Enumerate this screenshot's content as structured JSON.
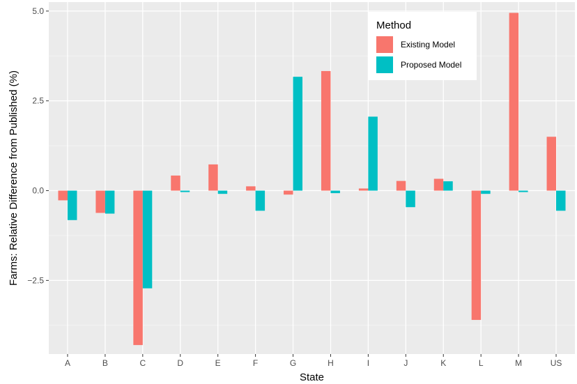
{
  "chart_data": {
    "type": "bar",
    "xlabel": "State",
    "ylabel": "Farms: Relative Difference from Published (%)",
    "categories": [
      "A",
      "B",
      "C",
      "D",
      "E",
      "F",
      "G",
      "H",
      "I",
      "J",
      "K",
      "L",
      "M",
      "US"
    ],
    "series": [
      {
        "name": "Existing Model",
        "color": "#F8766D",
        "values": [
          -0.27,
          -0.62,
          -4.3,
          0.42,
          0.73,
          0.12,
          -0.11,
          3.33,
          0.06,
          0.27,
          0.33,
          -3.6,
          4.95,
          1.5
        ]
      },
      {
        "name": "Proposed Model",
        "color": "#00BFC4",
        "values": [
          -0.82,
          -0.64,
          -2.72,
          -0.04,
          -0.09,
          -0.56,
          3.17,
          -0.07,
          2.06,
          -0.46,
          0.26,
          -0.09,
          -0.04,
          -0.56
        ]
      }
    ],
    "ylim": [
      -4.55,
      5.25
    ],
    "yticks": [
      -2.5,
      0.0,
      2.5,
      5.0
    ],
    "ytick_labels": [
      "−2.5",
      "0.0",
      "2.5",
      "5.0"
    ],
    "legend": {
      "title": "Method",
      "position": "top-right"
    },
    "grid": true,
    "panel_background": "#EBEBEB"
  }
}
